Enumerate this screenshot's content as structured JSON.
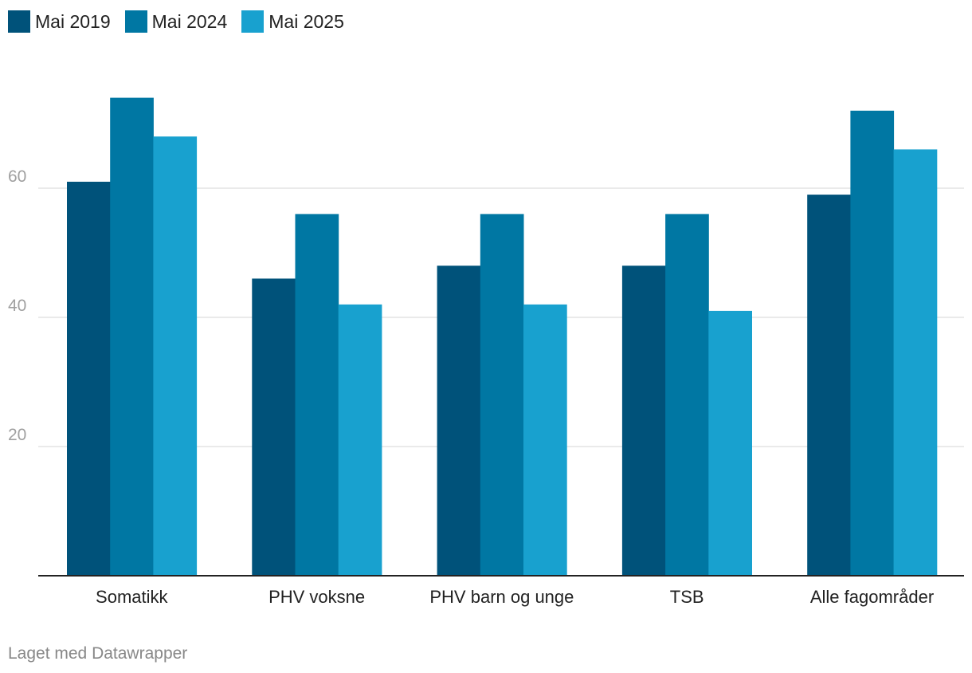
{
  "chart_data": {
    "type": "bar",
    "categories": [
      "Somatikk",
      "PHV voksne",
      "PHV barn og unge",
      "TSB",
      "Alle fagområder"
    ],
    "series": [
      {
        "name": "Mai 2019",
        "color": "#00527a",
        "values": [
          61,
          46,
          48,
          48,
          59
        ]
      },
      {
        "name": "Mai 2024",
        "color": "#0077a3",
        "values": [
          74,
          56,
          56,
          56,
          72
        ]
      },
      {
        "name": "Mai 2025",
        "color": "#18a1cf",
        "values": [
          68,
          42,
          42,
          41,
          66
        ]
      }
    ],
    "yticks": [
      20,
      40,
      60
    ],
    "ylim": [
      0,
      80
    ],
    "grid": true,
    "legend_position": "top-left"
  },
  "footer": {
    "credit": "Laget med Datawrapper"
  },
  "colors": {
    "grid": "#e4e4e4",
    "axis": "#222222",
    "tick_label": "#a0a0a0"
  }
}
